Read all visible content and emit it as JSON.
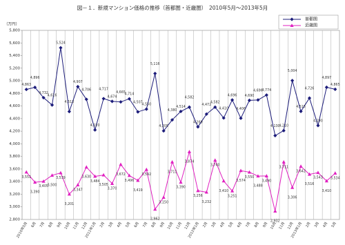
{
  "chart_data": {
    "type": "line",
    "title": "図－１．新規マンション価格の推移（首都圏・近畿圏）　2010年5月～2013年5月",
    "y_label": "（万円）",
    "categories": [
      "2010年5月",
      "6月",
      "7月",
      "8月",
      "9月",
      "10月",
      "11月",
      "12月",
      "2011年1月",
      "2月",
      "3月",
      "4月",
      "5月",
      "6月",
      "7月",
      "8月",
      "9月",
      "10月",
      "11月",
      "12月",
      "2012年1月",
      "2月",
      "3月",
      "4月",
      "5月",
      "6月",
      "7月",
      "8月",
      "9月",
      "10月",
      "11月",
      "12月",
      "2013年1月",
      "2月",
      "3月",
      "4月",
      "5月"
    ],
    "series": [
      {
        "name": "首都圏",
        "color": "#1c1c7a",
        "marker": "diamond",
        "values": [
          4863,
          4896,
          4732,
          4616,
          5524,
          4512,
          4907,
          4706,
          4220,
          4717,
          4674,
          4665,
          4714,
          4507,
          4550,
          5116,
          4205,
          4380,
          4514,
          4582,
          4269,
          4472,
          4582,
          4410,
          4696,
          4406,
          4690,
          4696,
          4774,
          4130,
          4210,
          5004,
          4515,
          4726,
          4290,
          4897,
          4865
        ],
        "value_labels": [
          "4,863",
          "4,896",
          "4,732",
          "4,616",
          "5,524",
          "4,512",
          "4,907",
          "4,706",
          "4,220",
          "4,717",
          "4,674",
          "4,665",
          "4,714",
          "4,507",
          "4,550",
          "5,116",
          "4,205",
          "4,380",
          "4,514",
          "4,582",
          "4,269",
          "4,472",
          "4,582",
          "4,410",
          "4,696",
          "4,406",
          "4,690",
          "4,696",
          "4,774",
          "4,130",
          "4,210",
          "5,004",
          "4,515",
          "4,726",
          "4,290",
          "4,897",
          "4,865"
        ]
      },
      {
        "name": "近畿圏",
        "color": "#e020c0",
        "marker": "triangle",
        "values": [
          3551,
          3390,
          3405,
          3500,
          3539,
          3201,
          3347,
          3630,
          3484,
          3505,
          3370,
          3672,
          3496,
          3419,
          3592,
          2962,
          3150,
          3711,
          3390,
          3874,
          3256,
          3232,
          3740,
          3410,
          3251,
          3574,
          3550,
          3488,
          3490,
          2932,
          3711,
          3306,
          3642,
          3516,
          3543,
          3410,
          3534
        ],
        "value_labels": [
          "3,551",
          "3,390",
          "3,405",
          "3,500",
          "3,539",
          "3,201",
          "3,347",
          "3,630",
          "3,484",
          "3,505",
          "3,370",
          "3,672",
          "3,496",
          "3,419",
          "3,592",
          "2,962",
          "3,150",
          "3,711",
          "3,390",
          "3,874",
          "3,256",
          "3,232",
          "3,740",
          "3,410",
          "3,251",
          "3,574",
          "3,550",
          "3,488",
          "3,490",
          "2,932",
          "3,711",
          "3,306",
          "3,642",
          "3,516",
          "3,543",
          "3,410",
          "3,534"
        ]
      }
    ],
    "ylim": [
      2800,
      5800
    ],
    "yticks": [
      {
        "value": 2800,
        "label": "2,800"
      },
      {
        "value": 3000,
        "label": "3,000"
      },
      {
        "value": 3200,
        "label": "3,200"
      },
      {
        "value": 3400,
        "label": "3,400"
      },
      {
        "value": 3600,
        "label": "3,600"
      },
      {
        "value": 3800,
        "label": "3,800"
      },
      {
        "value": 4000,
        "label": "4,000"
      },
      {
        "value": 4200,
        "label": "4,200"
      },
      {
        "value": 4400,
        "label": "4,400"
      },
      {
        "value": 4600,
        "label": "4,600"
      },
      {
        "value": 4800,
        "label": "4,800"
      },
      {
        "value": 5000,
        "label": "5,000"
      },
      {
        "value": 5200,
        "label": "5,200"
      },
      {
        "value": 5400,
        "label": "5,400"
      },
      {
        "value": 5600,
        "label": "5,600"
      },
      {
        "value": 5800,
        "label": "5,800"
      }
    ],
    "grid": "vertical",
    "legend": "top-right"
  }
}
